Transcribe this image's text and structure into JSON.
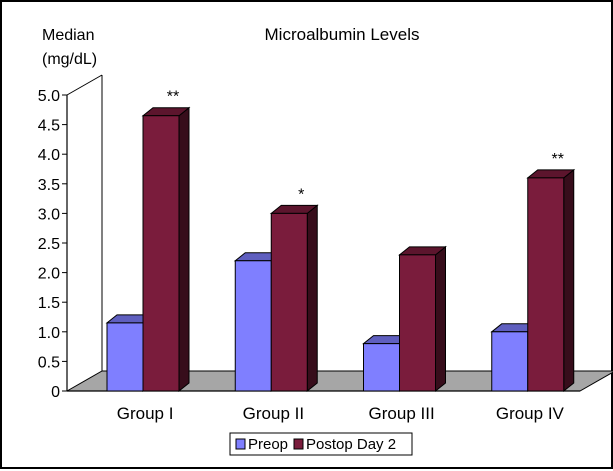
{
  "chart_data": {
    "type": "bar",
    "title": "Microalbumin Levels",
    "ylabel": [
      "Median",
      "(mg/dL)"
    ],
    "xlabel": "",
    "ylim": [
      0,
      5.0
    ],
    "yticks": [
      "0",
      "0.5",
      "1.0",
      "1.5",
      "2.0",
      "2.5",
      "3.0",
      "3.5",
      "4.0",
      "4.5",
      "5.0"
    ],
    "categories": [
      "Group I",
      "Group II",
      "Group III",
      "Group IV"
    ],
    "series": [
      {
        "name": "Preop",
        "values": [
          1.15,
          2.2,
          0.8,
          1.0
        ],
        "color": "#7f7fff"
      },
      {
        "name": "Postop Day 2",
        "values": [
          4.65,
          3.0,
          2.3,
          3.6
        ],
        "color": "#7a1c3c"
      }
    ],
    "annotations": [
      {
        "category": "Group I",
        "text": "**"
      },
      {
        "category": "Group II",
        "text": "*"
      },
      {
        "category": "Group IV",
        "text": "**"
      }
    ],
    "legend_position": "bottom",
    "grid": false,
    "style": "3d"
  }
}
